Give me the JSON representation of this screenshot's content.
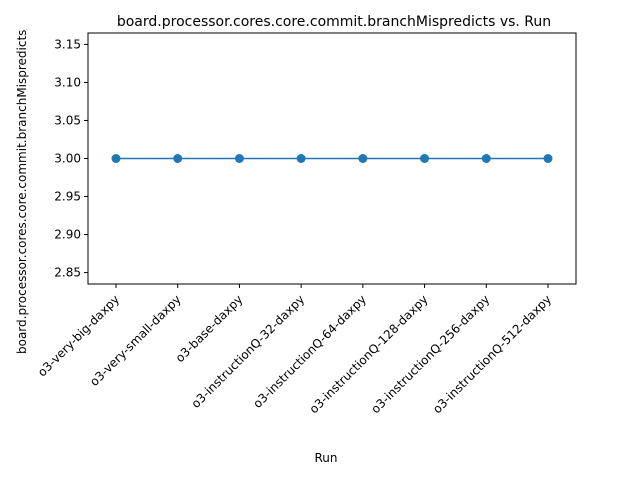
{
  "chart_data": {
    "type": "line",
    "title": "board.processor.cores.core.commit.branchMispredicts vs. Run",
    "xlabel": "Run",
    "ylabel": "board.processor.cores.core.commit.branchMispredicts",
    "categories": [
      "o3-very-big-daxpy",
      "o3-very-small-daxpy",
      "o3-base-daxpy",
      "o3-instructionQ-32-daxpy",
      "o3-instructionQ-64-daxpy",
      "o3-instructionQ-128-daxpy",
      "o3-instructionQ-256-daxpy",
      "o3-instructionQ-512-daxpy"
    ],
    "series": [
      {
        "values": [
          3,
          3,
          3,
          3,
          3,
          3,
          3,
          3
        ],
        "color": "#1f77b4",
        "marker": "circle"
      }
    ],
    "ylim": [
      2.835,
      3.165
    ],
    "yticks": [
      "2.85",
      "2.90",
      "2.95",
      "3.00",
      "3.05",
      "3.10",
      "3.15"
    ],
    "grid": false,
    "legend": "none"
  }
}
